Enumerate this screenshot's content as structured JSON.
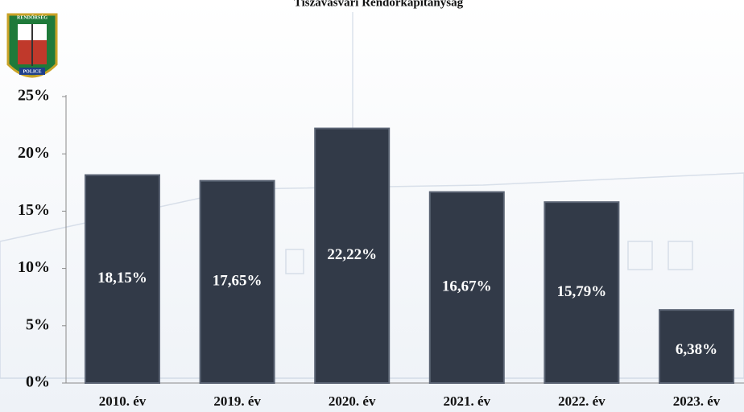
{
  "logo": {
    "top": "RENDŐRSÉG",
    "bottom": "POLICE"
  },
  "chart_data": {
    "type": "bar",
    "title": "Tiszavasvári Rendőrkapitányság",
    "categories": [
      "2010. év",
      "2019. év",
      "2020. év",
      "2021. év",
      "2022. év",
      "2023. év"
    ],
    "values": [
      18.15,
      17.65,
      22.22,
      16.67,
      15.79,
      6.38
    ],
    "value_labels": [
      "18,15%",
      "17,65%",
      "22,22%",
      "16,67%",
      "15,79%",
      "6,38%"
    ],
    "color": "#323a48",
    "ylim": [
      0,
      25
    ],
    "yticks": [
      {
        "value": 0,
        "label": "0%"
      },
      {
        "value": 5,
        "label": "5%"
      },
      {
        "value": 10,
        "label": "10%"
      },
      {
        "value": 15,
        "label": "15%"
      },
      {
        "value": 20,
        "label": "20%"
      },
      {
        "value": 25,
        "label": "25%"
      }
    ],
    "grid": false
  }
}
